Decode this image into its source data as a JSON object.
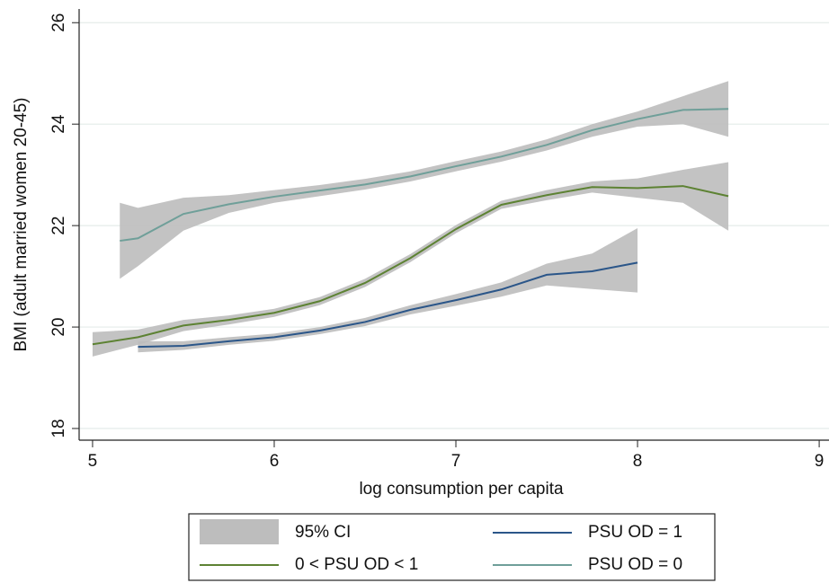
{
  "chart_data": {
    "type": "line",
    "x_label": "log consumption per capita",
    "y_label": "BMI (adult married women 20-45)",
    "xlim": [
      4.926,
      9.054
    ],
    "ylim": [
      17.77,
      26.27
    ],
    "xticks": [
      5,
      6,
      7,
      8,
      9
    ],
    "yticks": [
      18,
      20,
      22,
      24,
      26
    ],
    "grid": true,
    "band_label": "95% CI",
    "band_color": "#bdbdbd",
    "series": [
      {
        "name": "PSU OD = 1",
        "color": "#2b5689",
        "x": [
          5.25,
          5.5,
          5.75,
          6.0,
          6.25,
          6.5,
          6.75,
          7.0,
          7.25,
          7.5,
          7.75,
          8.0
        ],
        "values": [
          19.61,
          19.63,
          19.72,
          19.8,
          19.93,
          20.1,
          20.34,
          20.53,
          20.74,
          21.03,
          21.1,
          21.27
        ],
        "lower": [
          19.5,
          19.55,
          19.65,
          19.73,
          19.86,
          20.02,
          20.25,
          20.42,
          20.6,
          20.82,
          20.75,
          20.68
        ],
        "upper": [
          19.72,
          19.72,
          19.8,
          19.87,
          20.0,
          20.18,
          20.43,
          20.65,
          20.88,
          21.25,
          21.45,
          21.95
        ]
      },
      {
        "name": "0 < PSU OD < 1",
        "color": "#5d8233",
        "x": [
          5.0,
          5.25,
          5.5,
          5.75,
          6.0,
          6.25,
          6.5,
          6.75,
          7.0,
          7.25,
          7.5,
          7.75,
          8.0,
          8.25,
          8.5
        ],
        "values": [
          19.66,
          19.8,
          20.03,
          20.14,
          20.28,
          20.51,
          20.87,
          21.36,
          21.93,
          22.41,
          22.6,
          22.76,
          22.74,
          22.78,
          22.58
        ],
        "lower": [
          19.42,
          19.65,
          19.92,
          20.05,
          20.2,
          20.43,
          20.79,
          21.28,
          21.85,
          22.33,
          22.5,
          22.65,
          22.55,
          22.45,
          21.9
        ],
        "upper": [
          19.9,
          19.95,
          20.14,
          20.23,
          20.36,
          20.59,
          20.95,
          21.44,
          22.01,
          22.49,
          22.7,
          22.87,
          22.93,
          23.1,
          23.25
        ]
      },
      {
        "name": "PSU OD = 0",
        "color": "#6f9f99",
        "x": [
          5.15,
          5.25,
          5.5,
          5.75,
          6.0,
          6.25,
          6.5,
          6.75,
          7.0,
          7.25,
          7.5,
          7.75,
          8.0,
          8.25,
          8.5
        ],
        "values": [
          21.7,
          21.75,
          22.23,
          22.42,
          22.57,
          22.69,
          22.81,
          22.97,
          23.17,
          23.36,
          23.59,
          23.88,
          24.1,
          24.28,
          24.3
        ],
        "lower": [
          20.95,
          21.2,
          21.9,
          22.25,
          22.45,
          22.58,
          22.71,
          22.87,
          23.07,
          23.26,
          23.48,
          23.75,
          23.95,
          24.0,
          23.75
        ],
        "upper": [
          22.45,
          22.35,
          22.55,
          22.6,
          22.7,
          22.8,
          22.92,
          23.07,
          23.27,
          23.46,
          23.7,
          24.0,
          24.25,
          24.55,
          24.85
        ]
      }
    ]
  }
}
